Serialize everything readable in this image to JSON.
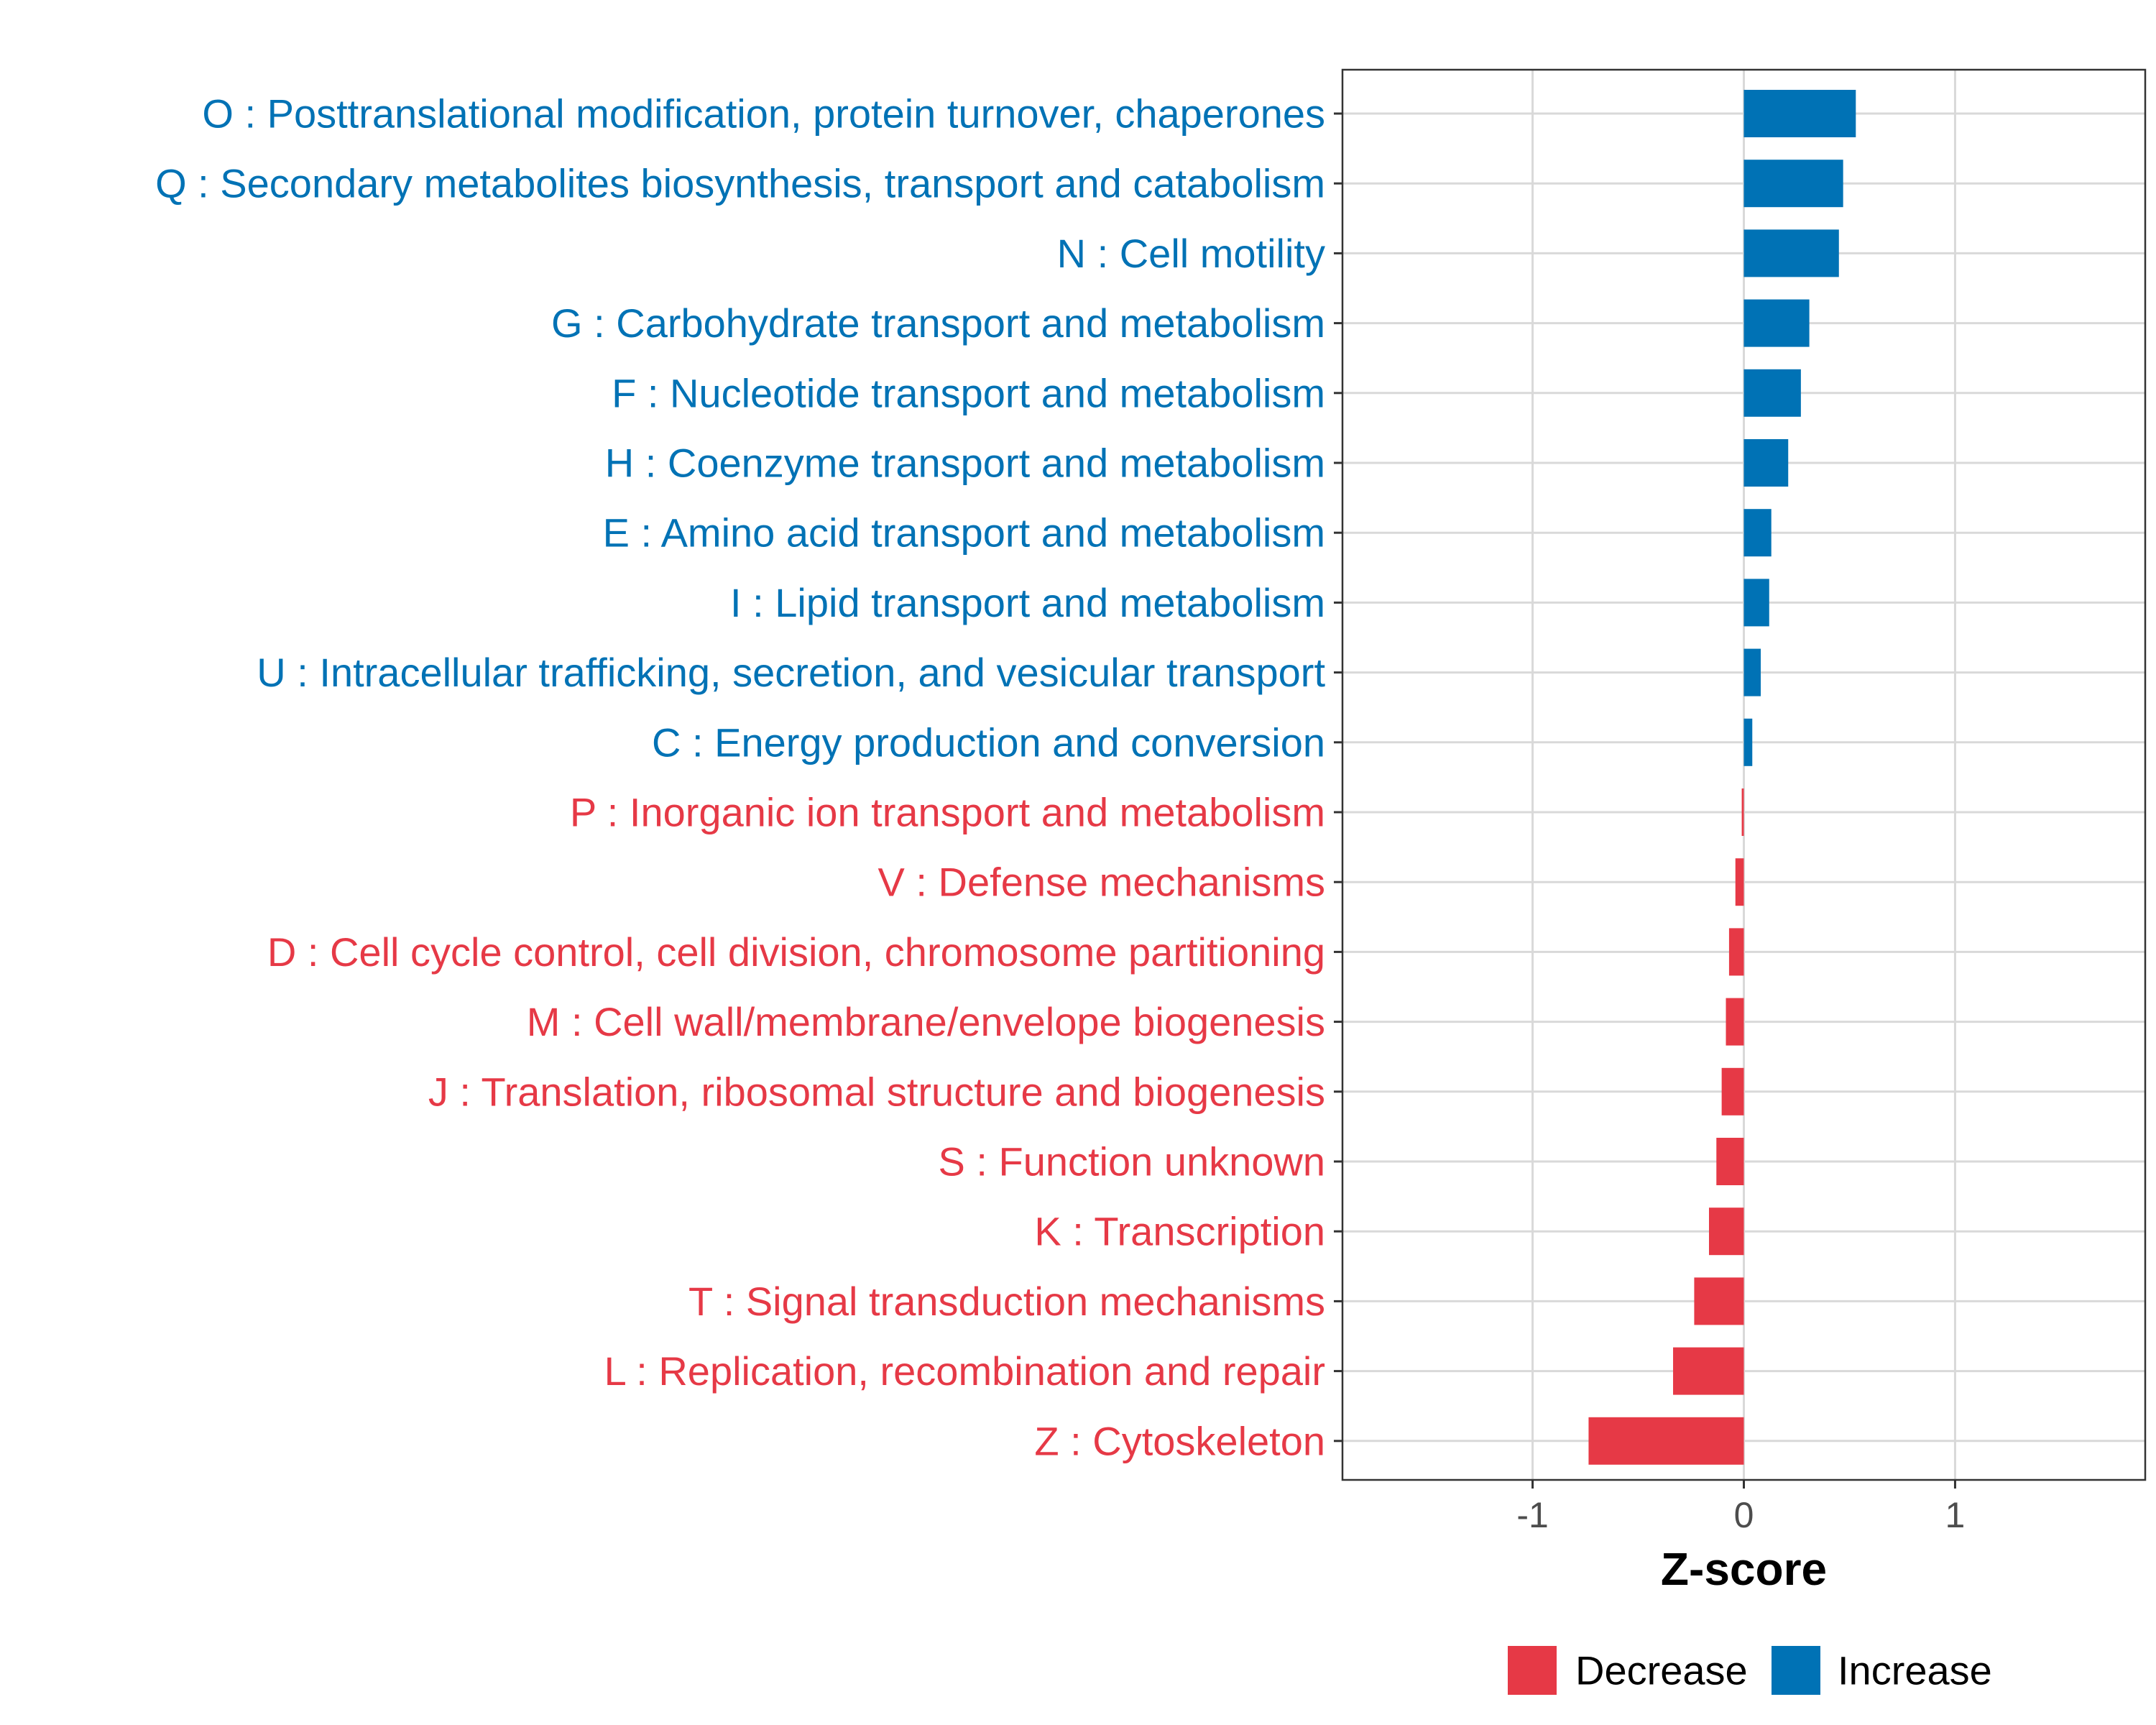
{
  "colors": {
    "increase": "#0072b5",
    "decrease": "#e63946",
    "grid": "#d9d9d9",
    "panel_border": "#333333"
  },
  "chart_data": {
    "type": "bar",
    "orientation": "horizontal",
    "xlabel": "Z-score",
    "ylabel": "",
    "xlim": [
      -1.9,
      1.9
    ],
    "x_ticks": [
      -1,
      0,
      1
    ],
    "x_tick_labels": [
      "-1",
      "0",
      "1"
    ],
    "grid": true,
    "legend_position": "bottom",
    "legend": [
      {
        "name": "Decrease",
        "color": "#e63946"
      },
      {
        "name": "Increase",
        "color": "#0072b5"
      }
    ],
    "categories": [
      "O : Posttranslational modification, protein turnover, chaperones",
      "Q : Secondary metabolites biosynthesis, transport and catabolism",
      "N : Cell motility",
      "G : Carbohydrate transport and metabolism",
      "F : Nucleotide transport and metabolism",
      "H : Coenzyme transport and metabolism",
      "E : Amino acid transport and metabolism",
      "I : Lipid transport and metabolism",
      "U : Intracellular trafficking, secretion, and vesicular transport",
      "C : Energy production and conversion",
      "P : Inorganic ion transport and metabolism",
      "V : Defense mechanisms",
      "D : Cell cycle control, cell division, chromosome partitioning",
      "M : Cell wall/membrane/envelope biogenesis",
      "J : Translation, ribosomal structure and biogenesis",
      "S : Function unknown",
      "K : Transcription",
      "T : Signal transduction mechanisms",
      "L : Replication, recombination and repair",
      "Z : Cytoskeleton"
    ],
    "values": [
      0.53,
      0.47,
      0.45,
      0.31,
      0.27,
      0.21,
      0.13,
      0.12,
      0.08,
      0.04,
      -0.01,
      -0.04,
      -0.07,
      -0.085,
      -0.105,
      -0.13,
      -0.165,
      -0.235,
      -0.335,
      -0.735
    ],
    "groups": [
      "Increase",
      "Increase",
      "Increase",
      "Increase",
      "Increase",
      "Increase",
      "Increase",
      "Increase",
      "Increase",
      "Increase",
      "Decrease",
      "Decrease",
      "Decrease",
      "Decrease",
      "Decrease",
      "Decrease",
      "Decrease",
      "Decrease",
      "Decrease",
      "Decrease"
    ]
  }
}
